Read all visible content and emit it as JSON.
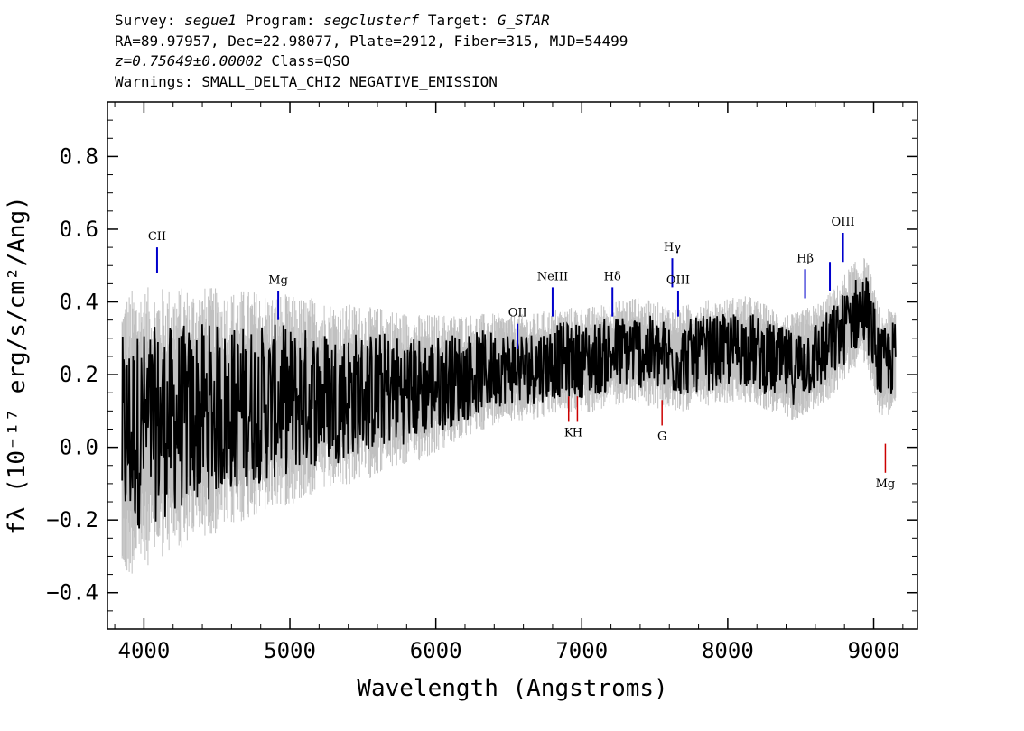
{
  "header": {
    "line1": {
      "survey_label": "Survey:",
      "survey": "segue1",
      "program_label": "Program:",
      "program": "segclusterf",
      "target_label": "Target:",
      "target": "G_STAR"
    },
    "line2": "RA=89.97957, Dec=22.98077, Plate=2912, Fiber=315, MJD=54499",
    "line3": {
      "redshift": "z=0.75649±0.00002",
      "class": "Class=QSO"
    },
    "line4": "Warnings: SMALL_DELTA_CHI2 NEGATIVE_EMISSION"
  },
  "chart_data": {
    "type": "line",
    "xlabel": "Wavelength (Angstroms)",
    "ylabel": "fλ (10⁻¹⁷ erg/s/cm²/Ang)",
    "xlim": [
      3750,
      9300
    ],
    "ylim": [
      -0.5,
      0.95
    ],
    "x_ticks": [
      4000,
      5000,
      6000,
      7000,
      8000,
      9000
    ],
    "y_ticks": [
      -0.4,
      -0.2,
      0.0,
      0.2,
      0.4,
      0.6,
      0.8
    ],
    "y_tick_labels": [
      "−0.4",
      "−0.2",
      "0.0",
      "0.2",
      "0.4",
      "0.6",
      "0.8"
    ],
    "series": [
      {
        "role": "flux",
        "color": "#000000",
        "x": [
          3850,
          3950,
          4050,
          4150,
          4250,
          4350,
          4450,
          4550,
          4650,
          4750,
          4850,
          4950,
          5050,
          5150,
          5250,
          5350,
          5450,
          5550,
          5650,
          5750,
          5850,
          5950,
          6050,
          6150,
          6250,
          6350,
          6450,
          6550,
          6650,
          6750,
          6850,
          6950,
          7050,
          7150,
          7250,
          7350,
          7450,
          7550,
          7650,
          7750,
          7850,
          7950,
          8050,
          8150,
          8250,
          8350,
          8450,
          8550,
          8650,
          8750,
          8850,
          8950,
          9050,
          9150
        ],
        "y": [
          0.02,
          0.05,
          0.06,
          0.07,
          0.08,
          0.09,
          0.1,
          0.1,
          0.11,
          0.12,
          0.12,
          0.13,
          0.13,
          0.14,
          0.14,
          0.14,
          0.15,
          0.15,
          0.16,
          0.16,
          0.16,
          0.17,
          0.18,
          0.19,
          0.2,
          0.21,
          0.22,
          0.22,
          0.22,
          0.23,
          0.24,
          0.24,
          0.24,
          0.25,
          0.26,
          0.27,
          0.26,
          0.25,
          0.24,
          0.25,
          0.26,
          0.26,
          0.27,
          0.27,
          0.25,
          0.23,
          0.22,
          0.24,
          0.26,
          0.3,
          0.36,
          0.38,
          0.22,
          0.25
        ]
      }
    ],
    "noise_color": "#c0c0c0",
    "emission_lines": [
      {
        "label": "CII",
        "x": 4090,
        "y_top": 0.55,
        "y_bottom": 0.48,
        "color": "#0000cc"
      },
      {
        "label": "Mg",
        "x": 4920,
        "y_top": 0.43,
        "y_bottom": 0.35,
        "color": "#0000cc"
      },
      {
        "label": "OII",
        "x": 6560,
        "y_top": 0.34,
        "y_bottom": 0.27,
        "color": "#0000cc"
      },
      {
        "label": "NeIII",
        "x": 6800,
        "y_top": 0.44,
        "y_bottom": 0.36,
        "color": "#0000cc"
      },
      {
        "label": "Hδ",
        "x": 7210,
        "y_top": 0.44,
        "y_bottom": 0.36,
        "color": "#0000cc"
      },
      {
        "label": "Hγ",
        "x": 7620,
        "y_top": 0.52,
        "y_bottom": 0.44,
        "color": "#0000cc"
      },
      {
        "label": "OIII",
        "x": 7660,
        "y_top": 0.43,
        "y_bottom": 0.36,
        "color": "#0000cc"
      },
      {
        "label": "Hβ",
        "x": 8530,
        "y_top": 0.49,
        "y_bottom": 0.41,
        "color": "#0000cc"
      },
      {
        "label": "",
        "x": 8700,
        "y_top": 0.51,
        "y_bottom": 0.43,
        "color": "#0000cc"
      },
      {
        "label": "OIII",
        "x": 8790,
        "y_top": 0.59,
        "y_bottom": 0.51,
        "color": "#0000cc"
      }
    ],
    "absorption_lines": [
      {
        "label": "K",
        "x": 6910,
        "y_top": 0.14,
        "y_bottom": 0.07,
        "color": "#cc0000"
      },
      {
        "label": "H",
        "x": 6970,
        "y_top": 0.14,
        "y_bottom": 0.07,
        "color": "#cc0000"
      },
      {
        "label": "G",
        "x": 7550,
        "y_top": 0.13,
        "y_bottom": 0.06,
        "color": "#cc0000"
      },
      {
        "label": "Mg",
        "x": 9080,
        "y_top": 0.01,
        "y_bottom": -0.07,
        "color": "#cc0000"
      }
    ]
  }
}
